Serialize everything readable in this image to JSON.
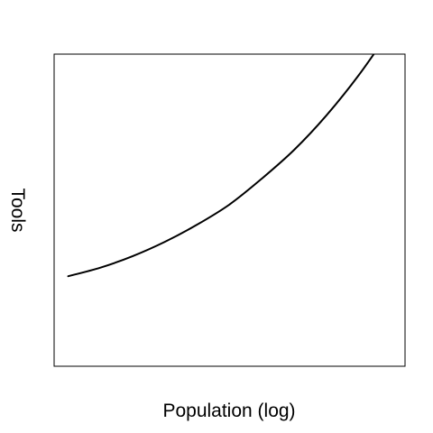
{
  "chart_data": {
    "type": "line",
    "title": "",
    "xlabel": "Population (log)",
    "ylabel": "Tools",
    "xlim": [
      0,
      1
    ],
    "ylim": [
      0,
      1
    ],
    "x_ticks_shown": false,
    "y_ticks_shown": false,
    "grid": false,
    "legend": "none",
    "series": [
      {
        "color": "#000000",
        "x": [
          0.0,
          0.1,
          0.2,
          0.3,
          0.4,
          0.5,
          0.6,
          0.7,
          0.8,
          0.9,
          1.0
        ],
        "y": [
          0.27,
          0.3,
          0.34,
          0.39,
          0.45,
          0.52,
          0.61,
          0.71,
          0.83,
          0.97,
          1.13
        ]
      }
    ]
  }
}
